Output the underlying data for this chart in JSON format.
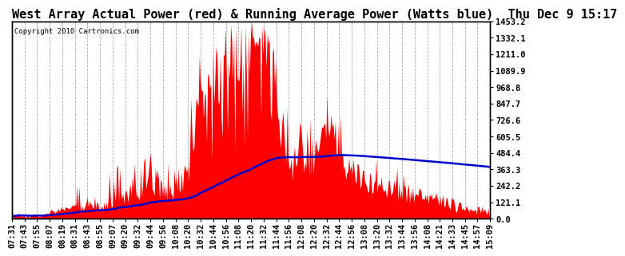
{
  "title": "West Array Actual Power (red) & Running Average Power (Watts blue)  Thu Dec 9 15:17",
  "copyright": "Copyright 2010 Cartronics.com",
  "ylabel_right_ticks": [
    0.0,
    121.1,
    242.2,
    363.3,
    484.4,
    605.5,
    726.6,
    847.7,
    968.8,
    1089.9,
    1211.0,
    1332.1,
    1453.2
  ],
  "ymax": 1453.2,
  "ymin": 0.0,
  "bg_color": "#ffffff",
  "grid_color": "#aaaaaa",
  "bar_color": "#ff0000",
  "line_color": "#0000cc",
  "title_fontsize": 11,
  "tick_fontsize": 7.5,
  "x_labels": [
    "07:31",
    "07:43",
    "07:55",
    "08:07",
    "08:19",
    "08:31",
    "08:43",
    "08:55",
    "09:07",
    "09:20",
    "09:32",
    "09:44",
    "09:56",
    "10:08",
    "10:20",
    "10:32",
    "10:44",
    "10:56",
    "11:08",
    "11:20",
    "11:32",
    "11:44",
    "11:56",
    "12:08",
    "12:20",
    "12:32",
    "12:44",
    "12:56",
    "13:08",
    "13:20",
    "13:32",
    "13:44",
    "13:56",
    "14:08",
    "14:21",
    "14:33",
    "14:45",
    "14:57",
    "15:09"
  ]
}
